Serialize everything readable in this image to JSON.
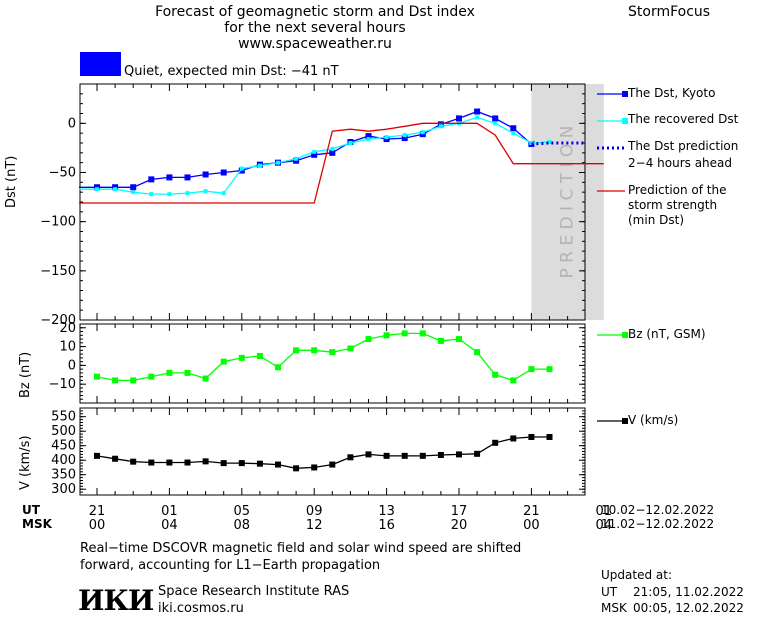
{
  "header": {
    "title_line1": "Forecast of geomagnetic storm and Dst index",
    "title_line2": "for the next several hours",
    "website": "www.spaceweather.ru",
    "brand": "StormFocus"
  },
  "status": {
    "text": "Quiet, expected min Dst: −41 nT",
    "color": "#0000ff"
  },
  "prediction_band_text": "P R E D I C T I O N",
  "legends": {
    "dst_kyoto": "The Dst, Kyoto",
    "dst_recovered": "The recovered Dst",
    "dst_prediction_line1": "The Dst prediction",
    "dst_prediction_line2": "2−4 hours ahead",
    "storm_line1": "Prediction of the",
    "storm_line2": "storm strength",
    "storm_line3": "(min Dst)",
    "bz": "Bz (nT, GSM)",
    "v": "V (km/s)"
  },
  "time_axis": {
    "ut_label": "UT",
    "msk_label": "MSK",
    "ut_ticks": [
      "21",
      "01",
      "05",
      "09",
      "13",
      "17",
      "21",
      "01"
    ],
    "msk_ticks": [
      "00",
      "04",
      "08",
      "12",
      "16",
      "20",
      "00",
      "04"
    ],
    "ut_dates": "10.02−12.02.2022",
    "msk_dates": "11.02−12.02.2022"
  },
  "footer": {
    "note_line1": "Real−time DSCOVR magnetic field and solar wind speed are shifted",
    "note_line2": "forward, accounting for L1−Earth propagation",
    "logo": "ИКИ",
    "institute": "Space Research Institute RAS",
    "institute_site": "iki.cosmos.ru",
    "updated_label": "Updated at:",
    "updated_ut_label": "UT",
    "updated_ut": "21:05, 11.02.2022",
    "updated_msk_label": "MSK",
    "updated_msk": "00:05, 12.02.2022"
  },
  "chart_data": [
    {
      "type": "line",
      "panel": "dst",
      "ylabel": "Dst (nT)",
      "x_unit": "hours since 21 UT, 10.02.2022",
      "xlim": [
        0,
        28
      ],
      "ylim": [
        -200,
        40
      ],
      "yticks": [
        0,
        -50,
        -100,
        -150,
        -200
      ],
      "ytick_labels": [
        "0",
        "−50",
        "−100",
        "−150",
        "−200"
      ],
      "prediction_region": [
        24,
        28
      ],
      "series": [
        {
          "name": "The Dst, Kyoto",
          "color": "#0000ff",
          "x": [
            -1,
            0,
            1,
            2,
            3,
            4,
            5,
            6,
            7,
            8,
            9,
            10,
            11,
            12,
            13,
            14,
            15,
            16,
            17,
            18,
            19,
            20,
            21,
            22,
            23,
            24
          ],
          "values": [
            -65,
            -65,
            -65,
            -65,
            -57,
            -55,
            -55,
            -52,
            -50,
            -48,
            -42,
            -40,
            -38,
            -32,
            -30,
            -19,
            -13,
            -16,
            -15,
            -11,
            -1,
            5,
            12,
            5,
            -5,
            -21
          ]
        },
        {
          "name": "The recovered Dst",
          "color": "#00ffff",
          "x": [
            -1,
            0,
            1,
            2,
            3,
            4,
            5,
            6,
            7,
            8,
            9,
            10,
            11,
            12,
            13,
            14,
            15,
            16,
            17,
            18,
            19,
            20,
            21,
            22,
            23,
            24,
            25
          ],
          "values": [
            -67,
            -67,
            -67,
            -70,
            -72,
            -72,
            -71,
            -69,
            -71,
            -46,
            -43,
            -40,
            -36,
            -29,
            -26,
            -20,
            -16,
            -14,
            -12,
            -9,
            -3,
            0,
            6,
            0,
            -10,
            -20,
            -19
          ]
        },
        {
          "name": "The Dst prediction 2−4 hours ahead",
          "color": "#0000dd",
          "style": "dotted",
          "x": [
            24,
            25,
            26,
            27
          ],
          "values": [
            -21,
            -20,
            -20,
            -20
          ]
        },
        {
          "name": "Prediction of the storm strength (min Dst)",
          "color": "#dd0000",
          "x": [
            -1,
            12,
            13,
            14,
            15,
            16,
            17,
            18,
            19,
            20,
            21,
            22,
            23,
            24,
            28
          ],
          "values": [
            -81,
            -81,
            -8,
            -6,
            -8,
            -6,
            -3,
            0,
            0,
            0,
            0,
            -12,
            -41,
            -41,
            -41
          ]
        }
      ]
    },
    {
      "type": "line",
      "panel": "bz",
      "ylabel": "Bz (nT)",
      "ylim": [
        -20,
        22
      ],
      "yticks": [
        20,
        10,
        0,
        -10
      ],
      "ytick_labels": [
        "20",
        "10",
        "0",
        "−10"
      ],
      "series": [
        {
          "name": "Bz (nT, GSM)",
          "color": "#00ff00",
          "x": [
            0,
            1,
            2,
            3,
            4,
            5,
            6,
            7,
            8,
            9,
            10,
            11,
            12,
            13,
            14,
            15,
            16,
            17,
            18,
            19,
            20,
            21,
            22,
            23,
            24,
            25
          ],
          "values": [
            -6,
            -8,
            -8,
            -6,
            -4,
            -4,
            -7,
            2,
            4,
            5,
            -1,
            8,
            8,
            7,
            9,
            14,
            16,
            17,
            17,
            13,
            14,
            7,
            -5,
            -8,
            -2,
            -2
          ]
        }
      ]
    },
    {
      "type": "line",
      "panel": "v",
      "ylabel": "V (km/s)",
      "ylim": [
        280,
        580
      ],
      "yticks": [
        550,
        500,
        450,
        400,
        350,
        300
      ],
      "ytick_labels": [
        "550",
        "500",
        "450",
        "400",
        "350",
        "300"
      ],
      "series": [
        {
          "name": "V (km/s)",
          "color": "#000000",
          "x": [
            0,
            1,
            2,
            3,
            4,
            5,
            6,
            7,
            8,
            9,
            10,
            11,
            12,
            13,
            14,
            15,
            16,
            17,
            18,
            19,
            20,
            21,
            22,
            23,
            24,
            25
          ],
          "values": [
            415,
            405,
            395,
            392,
            392,
            392,
            396,
            390,
            390,
            388,
            385,
            372,
            375,
            385,
            410,
            420,
            415,
            415,
            415,
            418,
            420,
            422,
            460,
            475,
            480,
            480
          ]
        }
      ]
    }
  ]
}
